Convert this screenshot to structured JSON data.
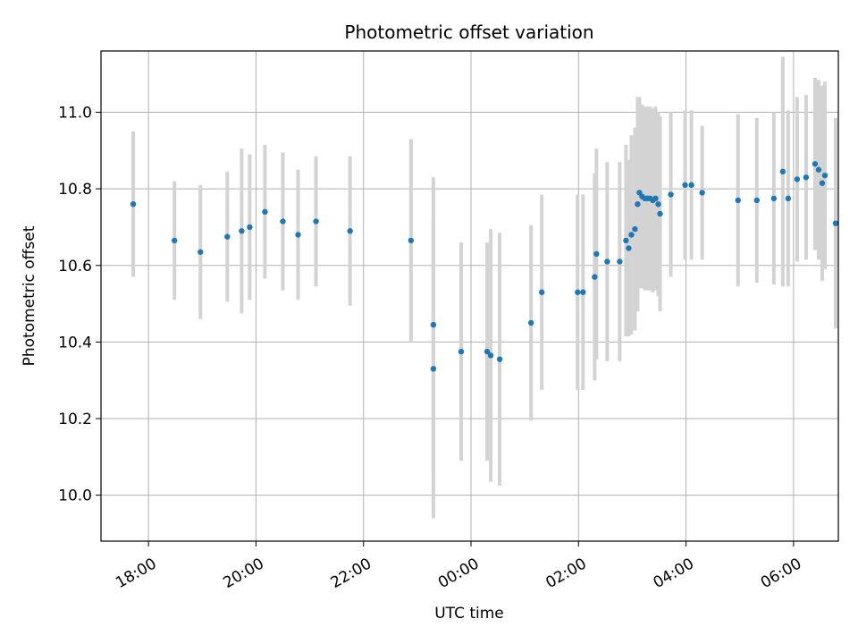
{
  "chart_data": {
    "type": "scatter",
    "title": "Photometric offset variation",
    "xlabel": "UTC time",
    "ylabel": "Photometric offset",
    "x_ticks": [
      "18:00",
      "20:00",
      "22:00",
      "00:00",
      "02:00",
      "04:00",
      "06:00"
    ],
    "y_ticks": [
      "10.0",
      "10.2",
      "10.4",
      "10.6",
      "10.8",
      "11.0"
    ],
    "ylim": [
      9.88,
      11.16
    ],
    "xlim": [
      "17:07",
      "06:50"
    ],
    "grid": true,
    "point_color": "#1f77b4",
    "errorbar_color": "#d3d3d3",
    "series": [
      {
        "x": [
          "17:43",
          "18:29",
          "18:58",
          "19:28",
          "19:44",
          "19:53",
          "20:10",
          "20:30",
          "20:47",
          "21:07",
          "21:45",
          "22:53",
          "23:18",
          "23:18",
          "23:49",
          "00:18",
          "00:22",
          "00:32",
          "01:07",
          "01:19",
          "01:59",
          "02:05",
          "02:18",
          "02:20",
          "02:32",
          "02:46",
          "02:53",
          "02:56",
          "02:59",
          "03:03",
          "03:06",
          "03:08",
          "03:11",
          "03:14",
          "03:17",
          "03:20",
          "03:23",
          "03:26",
          "03:29",
          "03:31",
          "03:43",
          "03:59",
          "04:06",
          "04:18",
          "04:58",
          "05:19",
          "05:38",
          "05:48",
          "05:54",
          "06:04",
          "06:14",
          "06:24",
          "06:28",
          "06:32",
          "06:35",
          "06:47"
        ],
        "y": [
          10.76,
          10.665,
          10.635,
          10.675,
          10.69,
          10.7,
          10.74,
          10.715,
          10.68,
          10.715,
          10.69,
          10.665,
          10.445,
          10.33,
          10.375,
          10.375,
          10.365,
          10.355,
          10.45,
          10.53,
          10.53,
          10.53,
          10.57,
          10.63,
          10.61,
          10.61,
          10.665,
          10.645,
          10.68,
          10.695,
          10.76,
          10.79,
          10.78,
          10.775,
          10.775,
          10.775,
          10.77,
          10.775,
          10.76,
          10.735,
          10.785,
          10.81,
          10.81,
          10.79,
          10.77,
          10.77,
          10.775,
          10.845,
          10.775,
          10.825,
          10.83,
          10.865,
          10.85,
          10.815,
          10.835,
          10.71
        ],
        "yerr": [
          0.19,
          0.155,
          0.175,
          0.17,
          0.215,
          0.19,
          0.175,
          0.18,
          0.17,
          0.17,
          0.195,
          0.265,
          0.385,
          0.39,
          0.285,
          0.285,
          0.33,
          0.33,
          0.255,
          0.255,
          0.255,
          0.255,
          0.27,
          0.275,
          0.26,
          0.26,
          0.25,
          0.23,
          0.26,
          0.265,
          0.28,
          0.25,
          0.24,
          0.24,
          0.24,
          0.24,
          0.24,
          0.24,
          0.24,
          0.255,
          0.215,
          0.195,
          0.195,
          0.175,
          0.225,
          0.215,
          0.225,
          0.3,
          0.23,
          0.215,
          0.215,
          0.225,
          0.235,
          0.255,
          0.245,
          0.275
        ]
      }
    ]
  }
}
